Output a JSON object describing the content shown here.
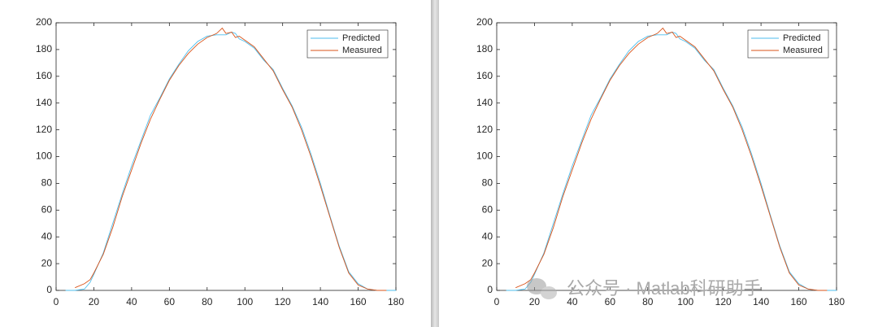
{
  "chart_data": [
    {
      "type": "line",
      "x": [
        5,
        10,
        15,
        18,
        20,
        25,
        30,
        35,
        40,
        45,
        50,
        55,
        60,
        65,
        70,
        75,
        80,
        85,
        88,
        90,
        93,
        95,
        97,
        100,
        105,
        110,
        115,
        120,
        125,
        130,
        135,
        140,
        145,
        150,
        155,
        160,
        165,
        170,
        175,
        180
      ],
      "series": [
        {
          "name": "Predicted",
          "color": "#4DBEEE",
          "values": [
            0,
            0,
            1,
            6,
            12,
            28,
            50,
            72,
            93,
            112,
            131,
            144,
            158,
            169,
            179,
            186,
            190,
            191,
            191,
            191,
            193,
            192,
            188,
            186,
            181,
            172,
            165,
            151,
            138,
            122,
            102,
            80,
            56,
            33,
            14,
            5,
            1,
            0,
            0,
            0
          ]
        },
        {
          "name": "Measured",
          "color": "#D95319",
          "values": [
            null,
            2,
            5,
            8,
            13,
            27,
            47,
            70,
            90,
            110,
            128,
            143,
            157,
            168,
            177,
            184,
            189,
            192,
            196,
            192,
            193,
            189,
            190,
            187,
            182,
            173,
            164,
            150,
            137,
            120,
            100,
            78,
            55,
            32,
            13,
            4,
            1,
            0,
            0,
            null
          ]
        }
      ],
      "xlim": [
        0,
        180
      ],
      "ylim": [
        0,
        200
      ],
      "xticks": [
        0,
        20,
        40,
        60,
        80,
        100,
        120,
        140,
        160,
        180
      ],
      "yticks": [
        0,
        20,
        40,
        60,
        80,
        100,
        120,
        140,
        160,
        180,
        200
      ],
      "legend": "northeast",
      "grid": false
    },
    {
      "type": "line",
      "x": [
        5,
        10,
        15,
        18,
        20,
        25,
        30,
        35,
        40,
        45,
        50,
        55,
        60,
        65,
        70,
        75,
        80,
        85,
        88,
        90,
        93,
        95,
        97,
        100,
        105,
        110,
        115,
        120,
        125,
        130,
        135,
        140,
        145,
        150,
        155,
        160,
        165,
        170,
        175,
        180
      ],
      "series": [
        {
          "name": "Predicted",
          "color": "#4DBEEE",
          "values": [
            0,
            0,
            1,
            6,
            12,
            28,
            50,
            72,
            93,
            112,
            131,
            144,
            158,
            169,
            179,
            186,
            190,
            191,
            191,
            191,
            193,
            192,
            188,
            186,
            181,
            172,
            165,
            151,
            138,
            122,
            102,
            80,
            56,
            33,
            14,
            5,
            1,
            0,
            0,
            0
          ]
        },
        {
          "name": "Measured",
          "color": "#D95319",
          "values": [
            null,
            2,
            5,
            8,
            13,
            27,
            47,
            70,
            90,
            110,
            128,
            143,
            157,
            168,
            177,
            184,
            189,
            192,
            196,
            192,
            193,
            189,
            190,
            187,
            182,
            173,
            164,
            150,
            137,
            120,
            100,
            78,
            55,
            32,
            13,
            4,
            1,
            0,
            0,
            null
          ]
        }
      ],
      "xlim": [
        0,
        180
      ],
      "ylim": [
        0,
        200
      ],
      "xticks": [
        0,
        20,
        40,
        60,
        80,
        100,
        120,
        140,
        160,
        180
      ],
      "yticks": [
        0,
        20,
        40,
        60,
        80,
        100,
        120,
        140,
        160,
        180,
        200
      ],
      "legend": "northeast",
      "grid": false
    }
  ],
  "watermark": "公众号 · Matlab科研助手"
}
